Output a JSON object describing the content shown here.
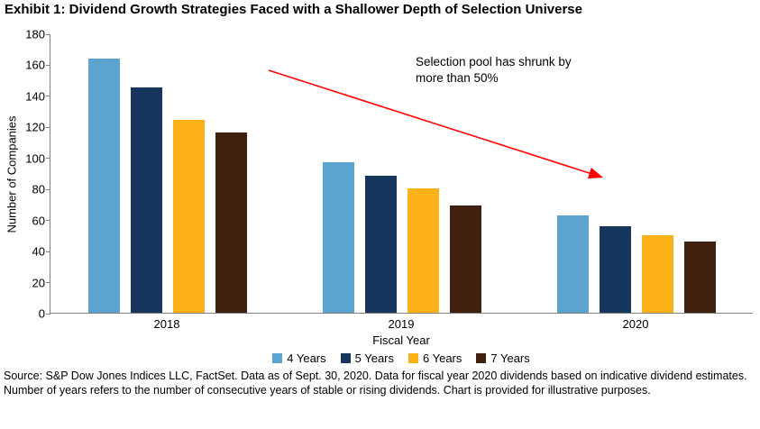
{
  "chart_data": {
    "type": "bar",
    "title": "Exhibit 1: Dividend Growth Strategies Faced with a Shallower Depth of Selection Universe",
    "categories": [
      "2018",
      "2019",
      "2020"
    ],
    "series": [
      {
        "name": "4 Years",
        "color": "#5BA4CF",
        "values": [
          164,
          97,
          63
        ]
      },
      {
        "name": "5 Years",
        "color": "#17365D",
        "values": [
          145,
          88,
          56
        ]
      },
      {
        "name": "6 Years",
        "color": "#FBB117",
        "values": [
          124,
          80,
          50
        ]
      },
      {
        "name": "7 Years",
        "color": "#42200F",
        "values": [
          116,
          69,
          46
        ]
      }
    ],
    "xlabel": "Fiscal Year",
    "ylabel": "Number of Companies",
    "ylim": [
      0,
      180
    ],
    "ytick_step": 20,
    "grid": false,
    "legend_position": "bottom",
    "annotation": {
      "line1": "Selection pool has shrunk by",
      "line2": "more than 50%",
      "arrow_color": "#FF0000"
    }
  },
  "source_text": "Source: S&P Dow Jones Indices LLC, FactSet. Data as of Sept. 30, 2020. Data for fiscal year 2020 dividends based on indicative dividend estimates. Number of years refers to the number of consecutive years of stable or rising dividends. Chart is provided for illustrative purposes."
}
